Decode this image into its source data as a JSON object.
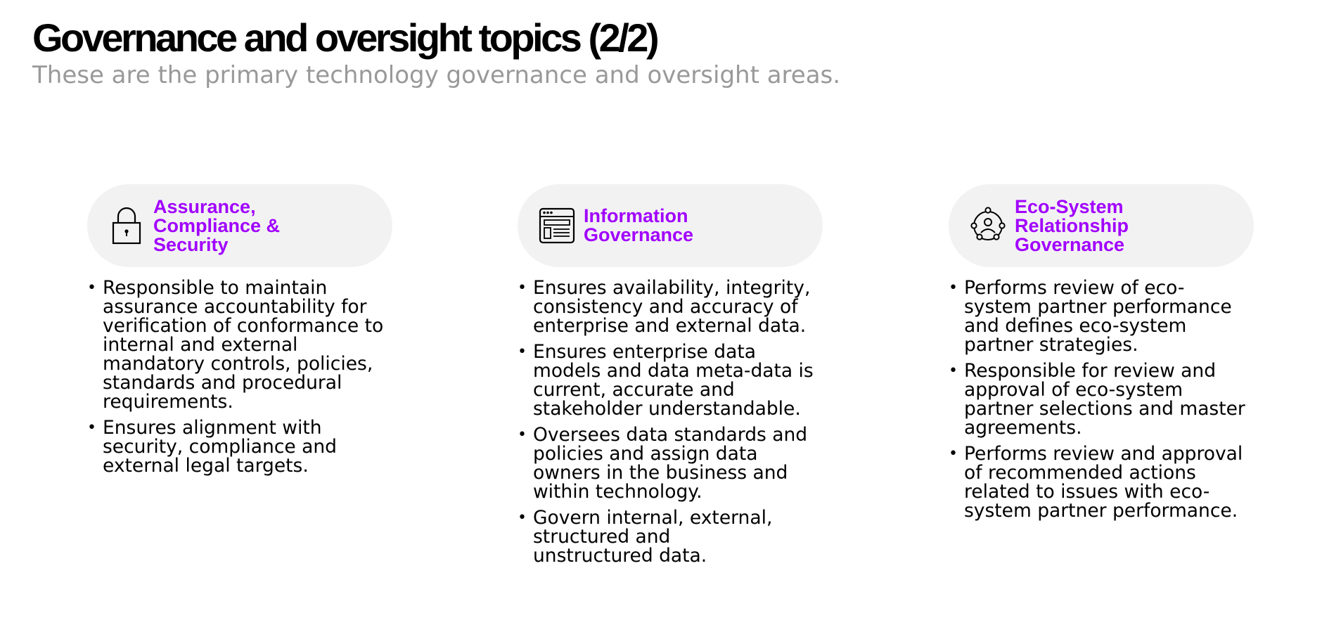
{
  "page": {
    "title": "Governance and oversight topics (2/2)",
    "subtitle": "These are the primary technology governance and oversight areas."
  },
  "accent_color": "#a100ff",
  "pill_background": "#f2f2f2",
  "columns": [
    {
      "icon": "padlock-icon",
      "title": "Assurance,\nCompliance &\nSecurity",
      "bullets": [
        "Responsible to maintain\nassurance accountability for\nverification of conformance to\ninternal and external\nmandatory controls, policies,\nstandards and procedural\nrequirements.",
        "Ensures alignment with\nsecurity, compliance and\nexternal legal targets."
      ]
    },
    {
      "icon": "browser-window-icon",
      "title": "Information\nGovernance",
      "bullets": [
        "Ensures availability, integrity,\nconsistency and accuracy of\nenterprise and external data.",
        "Ensures enterprise data\nmodels and data meta-data is\ncurrent, accurate and\nstakeholder understandable.",
        "Oversees data standards and\npolicies and assign data\nowners in the business and\nwithin technology.",
        "Govern internal, external,\nstructured and\nunstructured data."
      ]
    },
    {
      "icon": "ecosystem-network-icon",
      "title": "Eco-System\nRelationship\nGovernance",
      "bullets": [
        "Performs review of eco-\nsystem partner performance\nand defines eco-system\npartner strategies.",
        "Responsible for review and\napproval of eco-system\npartner selections and master\nagreements.",
        "Performs review and approval\nof recommended actions\nrelated to issues with eco-\nsystem partner performance."
      ]
    }
  ],
  "bullet_symbol": "•"
}
